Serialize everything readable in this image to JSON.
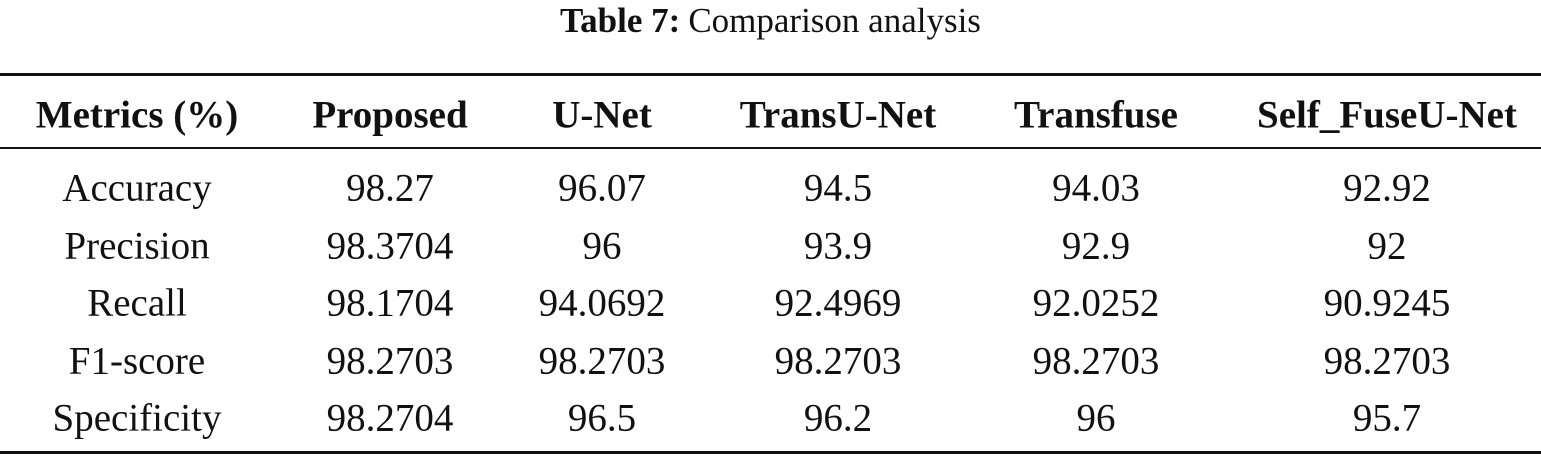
{
  "caption": {
    "label": "Table 7:",
    "text": "Comparison analysis"
  },
  "table": {
    "header": [
      "Metrics (%)",
      "Proposed",
      "U-Net",
      "TransU-Net",
      "Transfuse",
      "Self_FuseU-Net"
    ],
    "rows": [
      [
        "Accuracy",
        98.27,
        96.07,
        94.5,
        94.03,
        92.92
      ],
      [
        "Precision",
        98.3704,
        96,
        93.9,
        92.9,
        92
      ],
      [
        "Recall",
        98.1704,
        94.0692,
        92.4969,
        92.0252,
        90.9245
      ],
      [
        "F1-score",
        98.2703,
        98.2703,
        98.2703,
        98.2703,
        98.2703
      ],
      [
        "Specificity",
        98.2704,
        96.5,
        96.2,
        96,
        95.7
      ]
    ]
  }
}
